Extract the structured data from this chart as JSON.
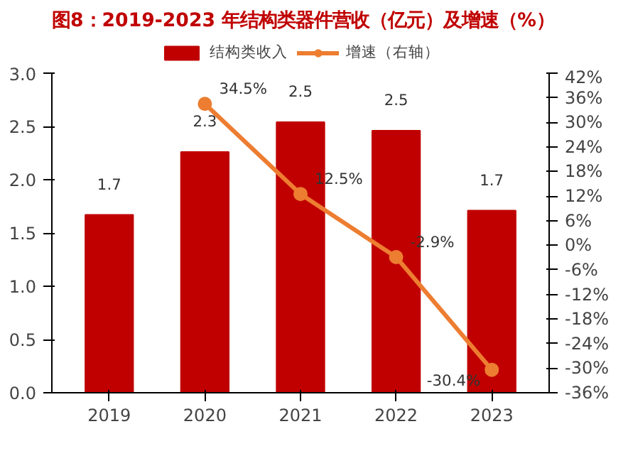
{
  "chart_data": {
    "type": "bar",
    "title": "图8：2019-2023 年结构类器件营收（亿元）及增速（%）",
    "categories": [
      "2019",
      "2020",
      "2021",
      "2022",
      "2023"
    ],
    "series": [
      {
        "name": "结构类收入",
        "color": "#c00000",
        "values": [
          1.67,
          2.26,
          2.54,
          2.46,
          1.71
        ],
        "value_labels": [
          "1.7",
          "2.3",
          "2.5",
          "2.5",
          "1.7"
        ]
      },
      {
        "name": "增速（右轴）",
        "type": "line",
        "axis": "y2",
        "color": "#ed7d31",
        "marker": "circle",
        "values": [
          null,
          34.5,
          12.5,
          -2.9,
          -30.4
        ],
        "value_labels": [
          null,
          "34.5%",
          "12.5%",
          "-2.9%",
          "-30.4%"
        ]
      }
    ],
    "ylim": [
      0,
      3.0
    ],
    "yticks": [
      {
        "value": 0,
        "label": "0.0"
      },
      {
        "value": 0.5,
        "label": "0.5"
      },
      {
        "value": 1.0,
        "label": "1.0"
      },
      {
        "value": 1.5,
        "label": "1.5"
      },
      {
        "value": 2.0,
        "label": "2.0"
      },
      {
        "value": 2.5,
        "label": "2.5"
      },
      {
        "value": 3.0,
        "label": "3.0"
      }
    ],
    "y2lim": [
      -36,
      42
    ],
    "y2ticks": [
      {
        "value": 42,
        "label": "42%"
      },
      {
        "value": 36,
        "label": "36%"
      },
      {
        "value": 30,
        "label": "30%"
      },
      {
        "value": 24,
        "label": "24%"
      },
      {
        "value": 18,
        "label": "18%"
      },
      {
        "value": 12,
        "label": "12%"
      },
      {
        "value": 6,
        "label": "6%"
      },
      {
        "value": 0,
        "label": "0%"
      },
      {
        "value": -6,
        "label": "-6%"
      },
      {
        "value": -12,
        "label": "-12%"
      },
      {
        "value": -18,
        "label": "-18%"
      },
      {
        "value": -24,
        "label": "-24%"
      },
      {
        "value": -30,
        "label": "-30%"
      },
      {
        "value": -36,
        "label": "-36%"
      }
    ],
    "grid": false,
    "legend": "top"
  }
}
